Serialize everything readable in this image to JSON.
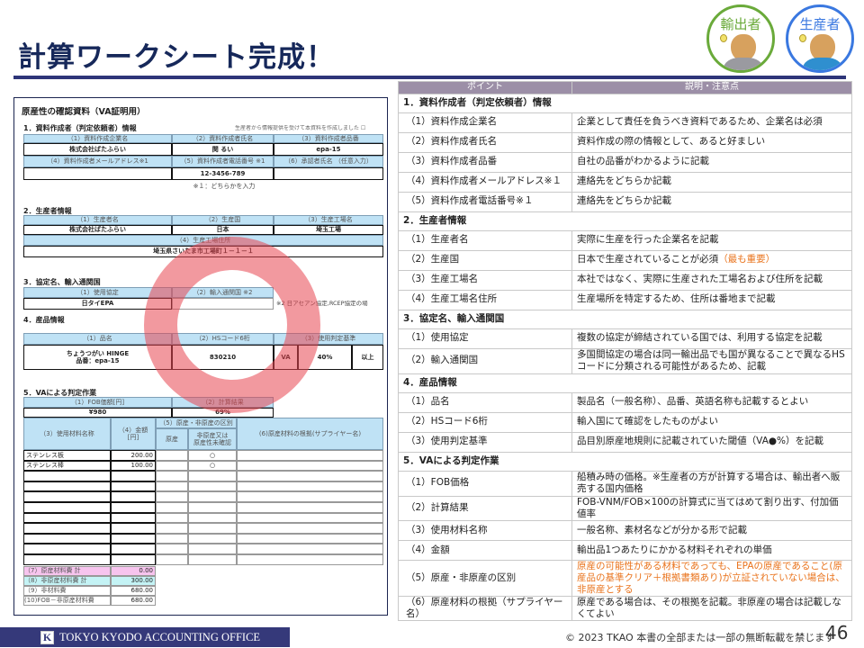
{
  "slide": {
    "title": "計算ワークシート完成！",
    "copyright": "© 2023 TKAO 本書の全部または一部の無断転載を禁じます",
    "page_number": "46",
    "company": "TOKYO KYODO ACCOUNTING OFFICE",
    "logo_letter": "K"
  },
  "badges": [
    {
      "label": "輸出者",
      "color": "#6aaa3a"
    },
    {
      "label": "生産者",
      "color": "#3a78e0"
    }
  ],
  "worksheet": {
    "title": "原産性の確認資料（VA証明用）",
    "s1": {
      "heading": "1．資料作成者（判定依頼者）情報",
      "note_right": "生産者から情報提供を受けて本資料を作成しました ☐",
      "h1": [
        "（1）資料作成企業名",
        "（2）資料作成者氏名",
        "（3）資料作成者品番"
      ],
      "v1": [
        "株式会社ばたふらい",
        "関 るい",
        "epa-15"
      ],
      "h2": [
        "（4）資料作成者メールアドレス※1",
        "（5）資料作成者電話番号 ※1",
        "（6）承認者氏名 （任意入力）"
      ],
      "v2": [
        "",
        "12-3456-789",
        ""
      ],
      "footnote": "※１：どちらかを入力"
    },
    "s2": {
      "heading": "2．生産者情報",
      "h1": [
        "（1）生産者名",
        "（2）生産国",
        "（3）生産工場名"
      ],
      "v1": [
        "株式会社ばたふらい",
        "日本",
        "埼玉工場"
      ],
      "h4": "（4）生産工場住所",
      "v4": "埼玉県さいたま市工場町１－１－１"
    },
    "s3": {
      "heading": "3．協定名、輸入通関国",
      "h": [
        "（1）使用協定",
        "（2）輸入通関国 ※2"
      ],
      "v": [
        "日タイEPA",
        ""
      ],
      "note": "※2 日アセアン協定,RCEP協定の場"
    },
    "s4": {
      "heading": "4．産品情報",
      "h": [
        "（1）品名",
        "（2）HSコード6桁",
        "（3）使用判定基準"
      ],
      "name_line1": "ちょうつがい HINGE",
      "name_line2": "品番：epa-15",
      "hs": "830210",
      "criterion": "VA",
      "threshold": "40%",
      "qualifier": "以上"
    },
    "s5": {
      "heading": "5．VAによる判定作業",
      "h": [
        "（1）FOB価額[円]",
        "（2）計算結果"
      ],
      "v": [
        "¥980",
        "69%"
      ],
      "col_material": "（3）使用材料名称",
      "col_amount": "（4）金額\n[円]",
      "col_distinction": "（5）原産・非原産の区別",
      "col_orig": "原産",
      "col_nonorig": "非原産又は\n原産性未確認",
      "col_basis": "(6)原産材料の根拠(サプライヤー名)",
      "rows": [
        {
          "name": "ステンレス板",
          "amount": "200.00",
          "orig": "",
          "nonorig": "○"
        },
        {
          "name": "ステンレス棒",
          "amount": "100.00",
          "orig": "",
          "nonorig": "○"
        },
        {
          "name": "",
          "amount": "",
          "orig": "",
          "nonorig": ""
        },
        {
          "name": "",
          "amount": "",
          "orig": "",
          "nonorig": ""
        },
        {
          "name": "",
          "amount": "",
          "orig": "",
          "nonorig": ""
        },
        {
          "name": "",
          "amount": "",
          "orig": "",
          "nonorig": ""
        },
        {
          "name": "",
          "amount": "",
          "orig": "",
          "nonorig": ""
        },
        {
          "name": "",
          "amount": "",
          "orig": "",
          "nonorig": ""
        },
        {
          "name": "",
          "amount": "",
          "orig": "",
          "nonorig": ""
        },
        {
          "name": "",
          "amount": "",
          "orig": "",
          "nonorig": ""
        },
        {
          "name": "",
          "amount": "",
          "orig": "",
          "nonorig": ""
        }
      ],
      "totals": [
        {
          "label": "（7）原産材料費 計",
          "value": "0.00",
          "color": "#f7c4ee"
        },
        {
          "label": "（8）非原産材料費 計",
          "value": "300.00",
          "color": "#c4f3f5"
        },
        {
          "label": "（9）非材料費",
          "value": "680.00",
          "color": "#ffffff"
        },
        {
          "label": "(10)FOB－非原産材料費",
          "value": "680.00",
          "color": "#ffffff"
        }
      ]
    }
  },
  "points_table": {
    "headers": [
      "ポイント",
      "説明・注意点"
    ],
    "rows": [
      {
        "type": "section",
        "point": "1．資料作成者（判定依頼者）情報"
      },
      {
        "type": "item",
        "point": "（1）資料作成企業名",
        "desc": "企業として責任を負うべき資料であるため、企業名は必須"
      },
      {
        "type": "item",
        "point": "（2）資料作成者氏名",
        "desc": "資料作成の際の情報として、あると好ましい"
      },
      {
        "type": "item",
        "point": "（3）資料作成者品番",
        "desc": "自社の品番がわかるように記載"
      },
      {
        "type": "item",
        "point": "（4）資料作成者メールアドレス※１",
        "desc": "連絡先をどちらか記載"
      },
      {
        "type": "item",
        "point": "（5）資料作成者電話番号※１",
        "desc": "連絡先をどちらか記載"
      },
      {
        "type": "section",
        "point": "2．生産者情報"
      },
      {
        "type": "item",
        "point": "（1）生産者名",
        "desc": "実際に生産を行った企業名を記載"
      },
      {
        "type": "item",
        "point": "（2）生産国",
        "desc": "日本で生産されていることが必須",
        "highlight": "（最も重要）"
      },
      {
        "type": "item",
        "point": "（3）生産工場名",
        "desc": "本社ではなく、実際に生産された工場名および住所を記載"
      },
      {
        "type": "item",
        "point": "（4）生産工場名住所",
        "desc": "生産場所を特定するため、住所は番地まで記載"
      },
      {
        "type": "section",
        "point": "3．協定名、輸入通関国"
      },
      {
        "type": "item",
        "point": "（1）使用協定",
        "desc": "複数の協定が締結されている国では、利用する協定を記載"
      },
      {
        "type": "item",
        "point": "（2）輸入通関国",
        "desc": "多国間協定の場合は同一輸出品でも国が異なることで異なるHSコードに分類される可能性があるため、記載",
        "double": true
      },
      {
        "type": "section",
        "point": "4．産品情報"
      },
      {
        "type": "item",
        "point": "（1）品名",
        "desc": "製品名（一般名称）、品番、英語名称も記載するとよい"
      },
      {
        "type": "item",
        "point": "（2）HSコード6桁",
        "desc": "輸入国にて確認をしたものがよい"
      },
      {
        "type": "item",
        "point": "（3）使用判定基準",
        "desc": "品目別原産地規則に記載されていた閾値（VA●%）を記載"
      },
      {
        "type": "section",
        "point": "5．VAによる判定作業"
      },
      {
        "type": "item",
        "point": "（1）FOB価格",
        "desc": "船積み時の価格。※生産者の方が計算する場合は、輸出者へ販売する国内価格",
        "double": true
      },
      {
        "type": "item",
        "point": "（2）計算結果",
        "desc": "FOB-VNM/FOB×100の計算式に当てはめて割り出す、付加価値率"
      },
      {
        "type": "item",
        "point": "（3）使用材料名称",
        "desc": "一般名称、素材名などが分かる形で記載"
      },
      {
        "type": "item",
        "point": "（4）金額",
        "desc": "輸出品1つあたりにかかる材料それぞれの単価"
      },
      {
        "type": "item",
        "point": "（5）原産・非原産の区別",
        "desc": "原産の可能性がある材料であっても、EPAの原産であること(原産品の基準クリア＋根拠書類あり)が立証されていない場合は、非原産とする",
        "double": true,
        "orange": true
      },
      {
        "type": "item",
        "point": "（6）原産材料の根拠（サプライヤー名）",
        "desc": "原産である場合は、その根拠を記載。非原産の場合は記載しなくてよい"
      }
    ]
  },
  "colors": {
    "title": "#16285a",
    "rule": "#2e3579",
    "table_header": "#9c8fa7",
    "ws_header": "#bfe2f5",
    "highlight": "#e9731c",
    "ring": "#e84650"
  }
}
